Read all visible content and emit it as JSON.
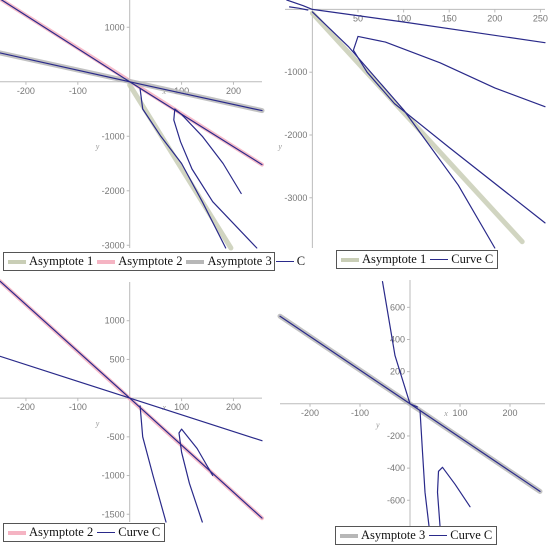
{
  "colors": {
    "asymptote1": "#c9ceb6",
    "asymptote2": "#f5b4c3",
    "asymptote3": "#b7b7b7",
    "curve": "#2a2a8a",
    "axis": "#bbbbbb"
  },
  "chart_data": [
    {
      "type": "line",
      "panel": "top-left",
      "xlabel": "x",
      "ylabel": "y",
      "xlim": [
        -250,
        255
      ],
      "ylim": [
        -3050,
        1500
      ],
      "xticks": [
        -200,
        -100,
        100,
        200
      ],
      "yticks": [
        1000,
        -1000,
        -2000,
        -3000
      ],
      "series": [
        {
          "name": "Asymptote 1",
          "kind": "asymptote",
          "style": "asymptote1",
          "x": [
            0,
            195
          ],
          "y": [
            -60,
            -3050
          ]
        },
        {
          "name": "Asymptote 2",
          "kind": "asymptote",
          "style": "asymptote2",
          "x": [
            -250,
            255
          ],
          "y": [
            1520,
            -1520
          ]
        },
        {
          "name": "Asymptote 3",
          "kind": "asymptote",
          "style": "asymptote3",
          "x": [
            -250,
            255
          ],
          "y": [
            530,
            -530
          ]
        },
        {
          "name": "C",
          "kind": "curve",
          "style": "curve",
          "x": [
            -250,
            0,
            255
          ],
          "y": [
            530,
            0,
            -530
          ]
        },
        {
          "name": "",
          "kind": "curve",
          "style": "curve",
          "x": [
            -250,
            0,
            255
          ],
          "y": [
            1520,
            0,
            -1520
          ]
        },
        {
          "name": "",
          "kind": "curve",
          "style": "curve",
          "x": [
            20,
            25,
            60,
            100,
            140,
            185
          ],
          "y": [
            -130,
            -500,
            -1000,
            -1500,
            -2200,
            -3050
          ]
        },
        {
          "name": "",
          "kind": "curve",
          "style": "curve",
          "x": [
            245,
            160,
            120,
            98,
            85,
            87,
            100,
            140,
            180,
            215
          ],
          "y": [
            -3050,
            -2200,
            -1600,
            -1100,
            -700,
            -500,
            -600,
            -1000,
            -1500,
            -2050
          ]
        }
      ],
      "legend": [
        {
          "label": "Asymptote 1",
          "style": "asymptote1"
        },
        {
          "label": "Asymptote 2",
          "style": "asymptote2"
        },
        {
          "label": "Asymptote 3",
          "style": "asymptote3"
        },
        {
          "label": "C",
          "style": "curve"
        }
      ]
    },
    {
      "type": "line",
      "panel": "top-right",
      "xlabel": "x",
      "ylabel": "y",
      "xlim": [
        -30,
        255
      ],
      "ylim": [
        -3800,
        150
      ],
      "xticks": [
        50,
        100,
        150,
        200,
        250
      ],
      "yticks": [
        -1000,
        -2000,
        -3000
      ],
      "series": [
        {
          "name": "Asymptote 1",
          "kind": "asymptote",
          "style": "asymptote1",
          "x": [
            0,
            230
          ],
          "y": [
            -60,
            -3700
          ]
        },
        {
          "name": "Curve C",
          "kind": "curve",
          "style": "curve",
          "x": [
            -28,
            -10,
            0,
            100,
            255
          ],
          "y": [
            150,
            60,
            0,
            -200,
            -530
          ]
        },
        {
          "name": "",
          "kind": "curve",
          "style": "curve",
          "x": [
            -25,
            -15,
            -5
          ],
          "y": [
            40,
            20,
            -10
          ]
        },
        {
          "name": "",
          "kind": "curve",
          "style": "curve",
          "x": [
            0,
            40,
            100,
            160,
            200
          ],
          "y": [
            -40,
            -600,
            -1600,
            -2800,
            -3800
          ]
        },
        {
          "name": "",
          "kind": "curve",
          "style": "curve",
          "x": [
            255,
            150,
            90,
            60,
            45,
            50,
            80,
            140,
            200,
            255
          ],
          "y": [
            -3400,
            -2200,
            -1500,
            -1000,
            -650,
            -430,
            -520,
            -850,
            -1250,
            -1550
          ]
        }
      ],
      "legend": [
        {
          "label": "Asymptote 1",
          "style": "asymptote1"
        },
        {
          "label": "Curve C",
          "style": "curve"
        }
      ]
    },
    {
      "type": "line",
      "panel": "bottom-left",
      "xlabel": "x",
      "ylabel": "y",
      "xlim": [
        -250,
        255
      ],
      "ylim": [
        -1600,
        1500
      ],
      "xticks": [
        -200,
        -100,
        100,
        200
      ],
      "yticks": [
        1000,
        500,
        -500,
        -1000,
        -1500
      ],
      "series": [
        {
          "name": "Asymptote 2",
          "kind": "asymptote",
          "style": "asymptote2",
          "x": [
            -250,
            255
          ],
          "y": [
            1510,
            -1550
          ]
        },
        {
          "name": "Curve C",
          "kind": "curve",
          "style": "curve",
          "x": [
            -250,
            0,
            255
          ],
          "y": [
            1510,
            0,
            -1550
          ]
        },
        {
          "name": "",
          "kind": "curve",
          "style": "curve",
          "x": [
            -250,
            0,
            255
          ],
          "y": [
            540,
            0,
            -550
          ]
        },
        {
          "name": "",
          "kind": "curve",
          "style": "curve",
          "x": [
            20,
            25,
            45,
            70
          ],
          "y": [
            -100,
            -500,
            -1000,
            -1600
          ]
        },
        {
          "name": "",
          "kind": "curve",
          "style": "curve",
          "x": [
            140,
            115,
            100,
            95,
            100,
            130,
            160
          ],
          "y": [
            -1600,
            -1100,
            -700,
            -450,
            -400,
            -650,
            -1000
          ]
        }
      ],
      "legend": [
        {
          "label": "Asymptote 2",
          "style": "asymptote2"
        },
        {
          "label": "Curve C",
          "style": "curve"
        }
      ]
    },
    {
      "type": "line",
      "panel": "bottom-right",
      "xlabel": "x",
      "ylabel": "y",
      "xlim": [
        -260,
        270
      ],
      "ylim": [
        -760,
        770
      ],
      "xticks": [
        -200,
        -100,
        100,
        200
      ],
      "yticks": [
        600,
        400,
        200,
        -200,
        -400,
        -600
      ],
      "series": [
        {
          "name": "Asymptote 3",
          "kind": "asymptote",
          "style": "asymptote3",
          "x": [
            -260,
            260
          ],
          "y": [
            545,
            -545
          ]
        },
        {
          "name": "Curve C",
          "kind": "curve",
          "style": "curve",
          "x": [
            -260,
            0,
            260
          ],
          "y": [
            545,
            0,
            -545
          ]
        },
        {
          "name": "",
          "kind": "curve",
          "style": "curve",
          "x": [
            -55,
            -30,
            0,
            15
          ],
          "y": [
            760,
            300,
            0,
            -20
          ]
        },
        {
          "name": "",
          "kind": "curve",
          "style": "curve",
          "x": [
            20,
            25,
            30,
            38
          ],
          "y": [
            -40,
            -300,
            -550,
            -760
          ]
        },
        {
          "name": "",
          "kind": "curve",
          "style": "curve",
          "x": [
            60,
            55,
            57,
            65,
            90,
            120
          ],
          "y": [
            -760,
            -550,
            -420,
            -395,
            -500,
            -640
          ]
        }
      ],
      "legend": [
        {
          "label": "Asymptote 3",
          "style": "asymptote3"
        },
        {
          "label": "Curve C",
          "style": "curve"
        }
      ]
    }
  ]
}
